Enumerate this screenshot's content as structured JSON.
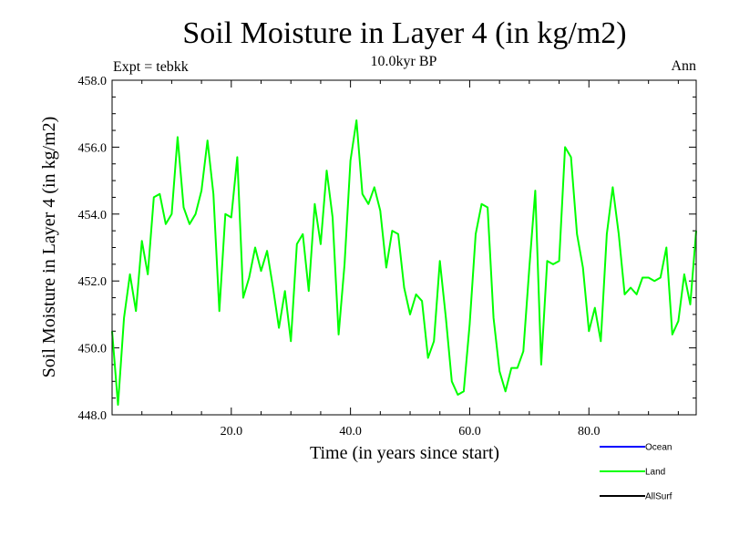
{
  "chart_data": {
    "type": "line",
    "title": "Soil Moisture in Layer 4 (in kg/m2)",
    "subtitle_left": "Expt = tebkk",
    "subtitle_center": "10.0kyr BP",
    "subtitle_right": "Ann",
    "xlabel": "Time (in years since start)",
    "ylabel": "Soil Moisture in Layer 4 (in kg/m2)",
    "xlim": [
      0,
      98
    ],
    "ylim": [
      448.0,
      458.0
    ],
    "x_ticks": [
      20,
      40,
      60,
      80
    ],
    "x_tick_labels": [
      "20.0",
      "40.0",
      "60.0",
      "80.0"
    ],
    "y_ticks": [
      448,
      450,
      452,
      454,
      456,
      458
    ],
    "y_tick_labels": [
      "448.0",
      "450.0",
      "452.0",
      "454.0",
      "456.0",
      "458.0"
    ],
    "legend": [
      {
        "name": "Ocean",
        "color": "#0000ff"
      },
      {
        "name": "Land",
        "color": "#00ff00"
      },
      {
        "name": "AllSurf",
        "color": "#000000"
      }
    ],
    "series": [
      {
        "name": "Land",
        "color": "#00ff00",
        "values": [
          450.5,
          448.3,
          450.9,
          452.2,
          451.1,
          453.2,
          452.2,
          454.5,
          454.6,
          453.7,
          454.0,
          456.3,
          454.2,
          453.7,
          454.0,
          454.7,
          456.2,
          454.6,
          451.1,
          454.0,
          453.9,
          455.7,
          451.5,
          452.1,
          453.0,
          452.3,
          452.9,
          451.8,
          450.6,
          451.7,
          450.2,
          453.1,
          453.4,
          451.7,
          454.3,
          453.1,
          455.3,
          453.9,
          450.4,
          452.5,
          455.6,
          456.8,
          454.6,
          454.3,
          454.8,
          454.1,
          452.4,
          453.5,
          453.4,
          451.8,
          451.0,
          451.6,
          451.4,
          449.7,
          450.2,
          452.6,
          450.9,
          449.0,
          448.6,
          448.7,
          450.7,
          453.4,
          454.3,
          454.2,
          450.9,
          449.3,
          448.7,
          449.4,
          449.4,
          449.9,
          452.4,
          454.7,
          449.5,
          452.6,
          452.5,
          452.6,
          456.0,
          455.7,
          453.4,
          452.4,
          450.5,
          451.2,
          450.2,
          453.4,
          454.8,
          453.4,
          451.6,
          451.8,
          451.6,
          452.1,
          452.1,
          452.0,
          452.1,
          453.0,
          450.4,
          450.8,
          452.2,
          451.3,
          453.5
        ]
      }
    ]
  }
}
